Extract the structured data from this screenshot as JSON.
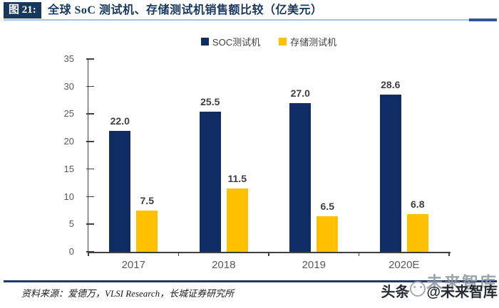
{
  "header": {
    "badge": "图 21:",
    "title": "全球 SoC 测试机、存储测试机销售额比较（亿美元）"
  },
  "chart_data": {
    "type": "bar",
    "title": "全球 SoC 测试机、存储测试机销售额比较（亿美元）",
    "categories": [
      "2017",
      "2018",
      "2019",
      "2020E"
    ],
    "series": [
      {
        "name": "SOC测试机",
        "color": "#0F2C64",
        "values": [
          22.0,
          25.5,
          27.0,
          28.6
        ]
      },
      {
        "name": "存储测试机",
        "color": "#FFC000",
        "values": [
          7.5,
          11.5,
          6.5,
          6.8
        ]
      }
    ],
    "xlabel": "",
    "ylabel": "",
    "ylim": [
      0,
      35
    ],
    "ytick_step": 5,
    "yticks": [
      0,
      5,
      10,
      15,
      20,
      25,
      30,
      35
    ],
    "grid": false,
    "legend_position": "top-center",
    "data_labels": true,
    "value_format": "one-decimal"
  },
  "footer": {
    "source": "资料来源：爱德万，VLSI Research，长城证券研究所"
  },
  "watermark": {
    "back": "未来智库",
    "front_prefix": "头条",
    "front_suffix": "@未来智库"
  },
  "colors": {
    "soc_bar": "#0F2C64",
    "memory_bar": "#FFC000",
    "header_navy": "#17375E",
    "rule_light_blue": "#A6C0E2",
    "rule_dark_blue": "#2F5597",
    "footer_rule_navy": "#1F3864",
    "axis_text_gray": "#595959",
    "value_label_gray": "#3F3F3F",
    "axis_line": "#404040"
  }
}
